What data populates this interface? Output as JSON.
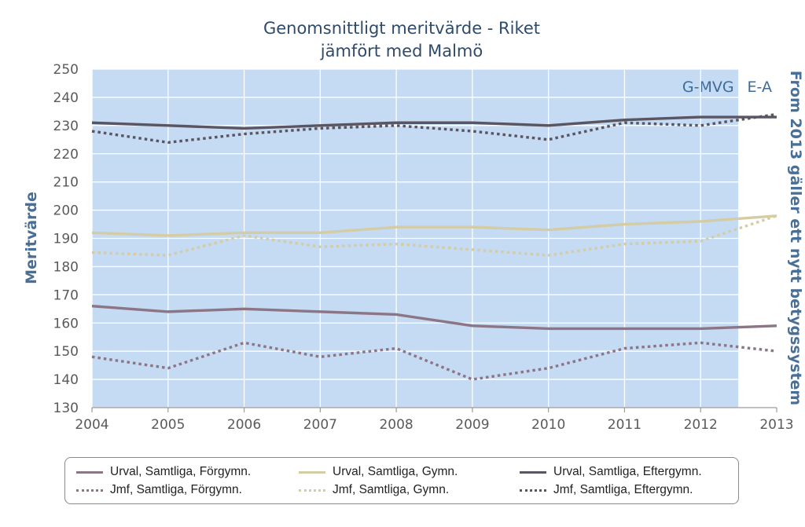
{
  "chart_data": {
    "type": "line",
    "title": [
      "Genomsnittligt meritvärde - Riket",
      "jämfört med Malmö"
    ],
    "ylabel": "Meritvärde",
    "right_label": "From 2013 gäller ett nytt betygssystem",
    "x": [
      "2004",
      "2005",
      "2006",
      "2007",
      "2008",
      "2009",
      "2010",
      "2011",
      "2012",
      "2013"
    ],
    "ylim": [
      130,
      250
    ],
    "yticks": [
      130,
      140,
      150,
      160,
      170,
      180,
      190,
      200,
      210,
      220,
      230,
      240,
      250
    ],
    "grid": true,
    "regions": [
      {
        "label": "G-MVG",
        "color": "#c5daf3",
        "from": "2004",
        "to": "2012.5"
      },
      {
        "label": "E-A",
        "color": "#ffffff",
        "from": "2012.5",
        "to": "2013"
      }
    ],
    "legend_position": "bottom",
    "series": [
      {
        "name": "Urval, Samtliga, Förgymn.",
        "color": "#8c7584",
        "dash": "solid",
        "values": [
          166,
          164,
          165,
          164,
          163,
          159,
          158,
          158,
          158,
          159
        ]
      },
      {
        "name": "Jmf, Samtliga, Förgymn.",
        "color": "#8c7584",
        "dash": "dotted",
        "values": [
          148,
          144,
          153,
          148,
          151,
          140,
          144,
          151,
          153,
          150
        ]
      },
      {
        "name": "Urval, Samtliga, Gymn.",
        "color": "#d3cca4",
        "dash": "solid",
        "values": [
          192,
          191,
          192,
          192,
          194,
          194,
          193,
          195,
          196,
          198
        ]
      },
      {
        "name": "Jmf, Samtliga, Gymn.",
        "color": "#d3cca4",
        "dash": "dotted",
        "values": [
          185,
          184,
          191,
          187,
          188,
          186,
          184,
          188,
          189,
          198
        ]
      },
      {
        "name": "Urval, Samtliga, Eftergymn.",
        "color": "#5a5560",
        "dash": "solid",
        "values": [
          231,
          230,
          229,
          230,
          231,
          231,
          230,
          232,
          233,
          233
        ]
      },
      {
        "name": "Jmf, Samtliga, Eftergymn.",
        "color": "#5a5560",
        "dash": "dotted",
        "values": [
          228,
          224,
          227,
          229,
          230,
          228,
          225,
          231,
          230,
          234
        ]
      }
    ]
  }
}
